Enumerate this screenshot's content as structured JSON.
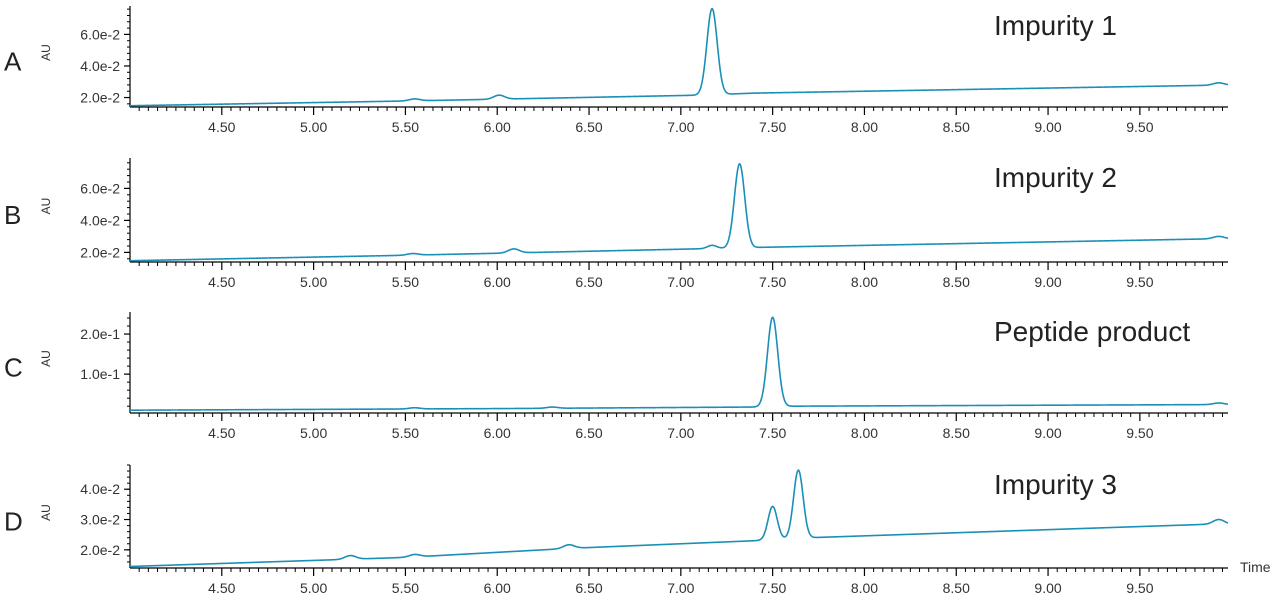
{
  "chart_data": {
    "type": "line",
    "xlabel": "Time",
    "xlim": [
      4.0,
      9.98
    ],
    "xticks": [
      4.5,
      5.0,
      5.5,
      6.0,
      6.5,
      7.0,
      7.5,
      8.0,
      8.5,
      9.0,
      9.5
    ],
    "xtick_labels": [
      "4.50",
      "5.00",
      "5.50",
      "6.00",
      "6.50",
      "7.00",
      "7.50",
      "8.00",
      "8.50",
      "9.00",
      "9.50"
    ],
    "line_color": "#1a8fb7",
    "panels": [
      {
        "letter": "A",
        "title": "Impurity 1",
        "ylabel": "AU",
        "ylim": [
          0.014,
          0.078
        ],
        "yticks": [
          0.02,
          0.04,
          0.06
        ],
        "ytick_labels": [
          "2.0e-2",
          "4.0e-2",
          "6.0e-2"
        ],
        "baseline": [
          [
            4.0,
            0.0148
          ],
          [
            5.5,
            0.0178
          ],
          [
            7.1,
            0.0215
          ],
          [
            7.4,
            0.0228
          ],
          [
            9.9,
            0.0278
          ],
          [
            9.98,
            0.0278
          ]
        ],
        "peaks": [
          {
            "rt": 5.55,
            "height": 0.0012,
            "width": 0.03
          },
          {
            "rt": 6.01,
            "height": 0.0025,
            "width": 0.03
          },
          {
            "rt": 7.17,
            "height": 0.0545,
            "width": 0.028
          },
          {
            "rt": 9.93,
            "height": 0.0015,
            "width": 0.03
          }
        ]
      },
      {
        "letter": "B",
        "title": "Impurity 2",
        "ylabel": "AU",
        "ylim": [
          0.014,
          0.079
        ],
        "yticks": [
          0.02,
          0.04,
          0.06
        ],
        "ytick_labels": [
          "2.0e-2",
          "4.0e-2",
          "6.0e-2"
        ],
        "baseline": [
          [
            4.0,
            0.0148
          ],
          [
            5.5,
            0.0182
          ],
          [
            7.2,
            0.0225
          ],
          [
            7.45,
            0.0232
          ],
          [
            9.9,
            0.0285
          ],
          [
            9.98,
            0.0285
          ]
        ],
        "peaks": [
          {
            "rt": 5.54,
            "height": 0.001,
            "width": 0.03
          },
          {
            "rt": 6.09,
            "height": 0.0025,
            "width": 0.03
          },
          {
            "rt": 7.17,
            "height": 0.002,
            "width": 0.025
          },
          {
            "rt": 7.32,
            "height": 0.0525,
            "width": 0.028
          },
          {
            "rt": 9.93,
            "height": 0.0015,
            "width": 0.03
          }
        ]
      },
      {
        "letter": "C",
        "title": "Peptide product",
        "ylabel": "AU",
        "ylim": [
          0.003,
          0.255
        ],
        "yticks": [
          0.1,
          0.2
        ],
        "ytick_labels": [
          "1.0e-1",
          "2.0e-1"
        ],
        "baseline": [
          [
            4.0,
            0.01
          ],
          [
            6.0,
            0.014
          ],
          [
            7.45,
            0.018
          ],
          [
            7.6,
            0.02
          ],
          [
            9.9,
            0.024
          ],
          [
            9.98,
            0.024
          ]
        ],
        "peaks": [
          {
            "rt": 5.55,
            "height": 0.003,
            "width": 0.03
          },
          {
            "rt": 6.3,
            "height": 0.003,
            "width": 0.03
          },
          {
            "rt": 7.5,
            "height": 0.223,
            "width": 0.028
          },
          {
            "rt": 9.93,
            "height": 0.004,
            "width": 0.03
          }
        ]
      },
      {
        "letter": "D",
        "title": "Impurity 3",
        "ylabel": "AU",
        "ylim": [
          0.014,
          0.048
        ],
        "yticks": [
          0.02,
          0.03,
          0.04
        ],
        "ytick_labels": [
          "2.0e-2",
          "3.0e-2",
          "4.0e-2"
        ],
        "baseline": [
          [
            4.0,
            0.0145
          ],
          [
            5.5,
            0.0175
          ],
          [
            6.4,
            0.0205
          ],
          [
            7.4,
            0.023
          ],
          [
            7.7,
            0.024
          ],
          [
            9.9,
            0.0285
          ],
          [
            9.98,
            0.0285
          ]
        ],
        "peaks": [
          {
            "rt": 5.2,
            "height": 0.0012,
            "width": 0.03
          },
          {
            "rt": 5.55,
            "height": 0.0008,
            "width": 0.03
          },
          {
            "rt": 6.39,
            "height": 0.0012,
            "width": 0.03
          },
          {
            "rt": 7.5,
            "height": 0.011,
            "width": 0.025
          },
          {
            "rt": 7.64,
            "height": 0.0225,
            "width": 0.026
          },
          {
            "rt": 9.93,
            "height": 0.0015,
            "width": 0.03
          }
        ]
      }
    ]
  }
}
